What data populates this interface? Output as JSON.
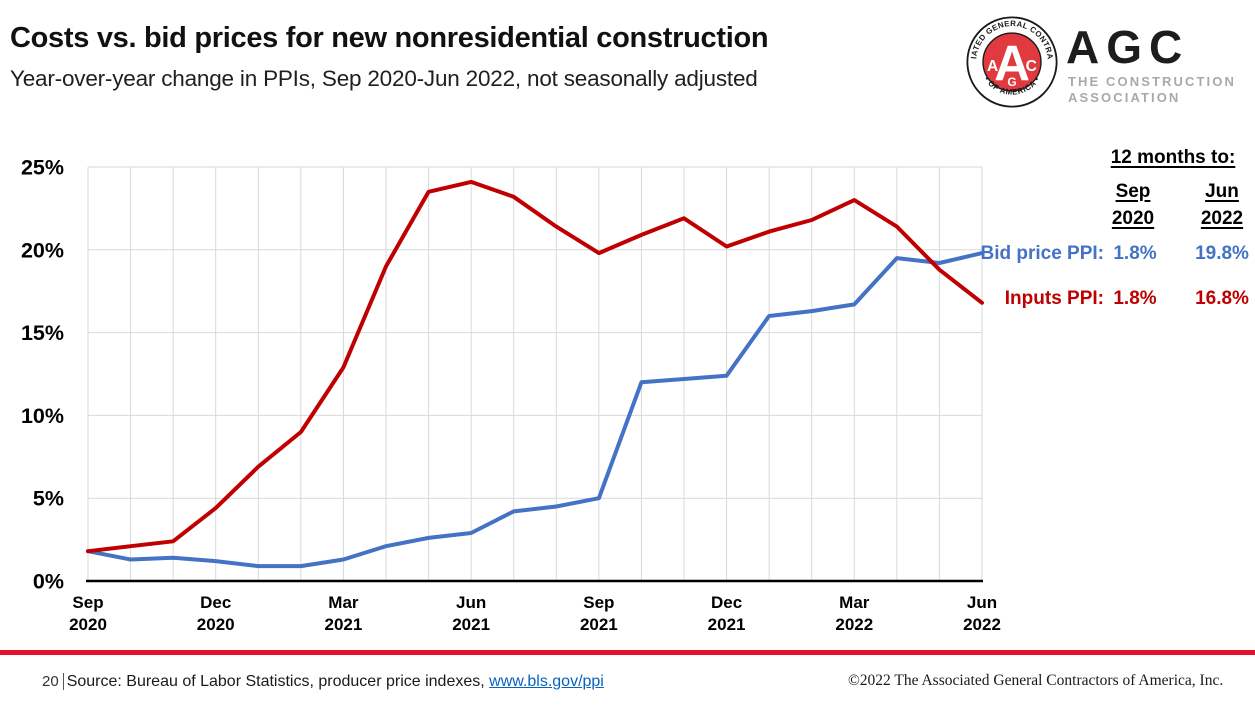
{
  "header": {
    "title": "Costs vs. bid prices for new nonresidential construction",
    "subtitle": "Year-over-year change in PPIs, Sep 2020-Jun 2022, not seasonally adjusted"
  },
  "logo": {
    "seal_top_text": "ASSOCIATED GENERAL CONTRACTORS",
    "seal_bottom_text": "• OF AMERICA •",
    "seal_letter_left": "A",
    "seal_letter_center": "A",
    "seal_letter_bottom": "G",
    "seal_letter_right": "C",
    "wordmark": "AGC",
    "tagline_line1": "THE CONSTRUCTION",
    "tagline_line2": "ASSOCIATION",
    "brand_red": "#e03a3e"
  },
  "side_table": {
    "heading": "12 months to:",
    "col1_line1": "Sep",
    "col1_line2": "2020",
    "col2_line1": "Jun",
    "col2_line2": "2022",
    "bid_label": "Bid price PPI:",
    "bid_sep2020": "1.8%",
    "bid_jun2022": "19.8%",
    "inputs_label": "Inputs PPI:",
    "inputs_sep2020": "1.8%",
    "inputs_jun2022": "16.8%"
  },
  "chart_data": {
    "type": "line",
    "title": "Costs vs. bid prices for new nonresidential construction",
    "subtitle": "Year-over-year change in PPIs, Sep 2020-Jun 2022, not seasonally adjusted",
    "x": [
      "Sep 2020",
      "Oct 2020",
      "Nov 2020",
      "Dec 2020",
      "Jan 2021",
      "Feb 2021",
      "Mar 2021",
      "Apr 2021",
      "May 2021",
      "Jun 2021",
      "Jul 2021",
      "Aug 2021",
      "Sep 2021",
      "Oct 2021",
      "Nov 2021",
      "Dec 2021",
      "Jan 2022",
      "Feb 2022",
      "Mar 2022",
      "Apr 2022",
      "May 2022",
      "Jun 2022"
    ],
    "series": [
      {
        "name": "Bid price PPI",
        "color": "#4472c4",
        "values": [
          1.8,
          1.3,
          1.4,
          1.2,
          0.9,
          0.9,
          1.3,
          2.1,
          2.6,
          2.9,
          4.2,
          4.5,
          5.0,
          12.0,
          12.2,
          12.4,
          16.0,
          16.3,
          16.7,
          19.5,
          19.2,
          19.8
        ]
      },
      {
        "name": "Inputs PPI",
        "color": "#c00000",
        "values": [
          1.8,
          2.1,
          2.4,
          4.4,
          6.9,
          9.0,
          12.9,
          19.0,
          23.5,
          24.1,
          23.2,
          21.4,
          19.8,
          20.9,
          21.9,
          20.2,
          21.1,
          21.8,
          23.0,
          21.4,
          18.8,
          16.8
        ]
      }
    ],
    "xlabel": "",
    "ylabel": "",
    "ylim": [
      0,
      25
    ],
    "yticks": [
      0,
      5,
      10,
      15,
      20,
      25
    ],
    "ytick_labels": [
      "0%",
      "5%",
      "10%",
      "15%",
      "20%",
      "25%"
    ],
    "xtick_indices": [
      0,
      3,
      6,
      9,
      12,
      15,
      18,
      21
    ],
    "xtick_labels": [
      [
        "Sep",
        "2020"
      ],
      [
        "Dec",
        "2020"
      ],
      [
        "Mar",
        "2021"
      ],
      [
        "Jun",
        "2021"
      ],
      [
        "Sep",
        "2021"
      ],
      [
        "Dec",
        "2021"
      ],
      [
        "Mar",
        "2022"
      ],
      [
        "Jun",
        "2022"
      ]
    ],
    "grid": true,
    "gridline_color": "#d9d9d9",
    "legend_position": "right-outside"
  },
  "footer": {
    "page_number": "20",
    "source_text": "Source: Bureau of Labor Statistics, producer price indexes, ",
    "source_link": "www.bls.gov/ppi",
    "copyright": "©2022 The Associated General Contractors of America, Inc.",
    "divider_color": "#e8112d"
  }
}
